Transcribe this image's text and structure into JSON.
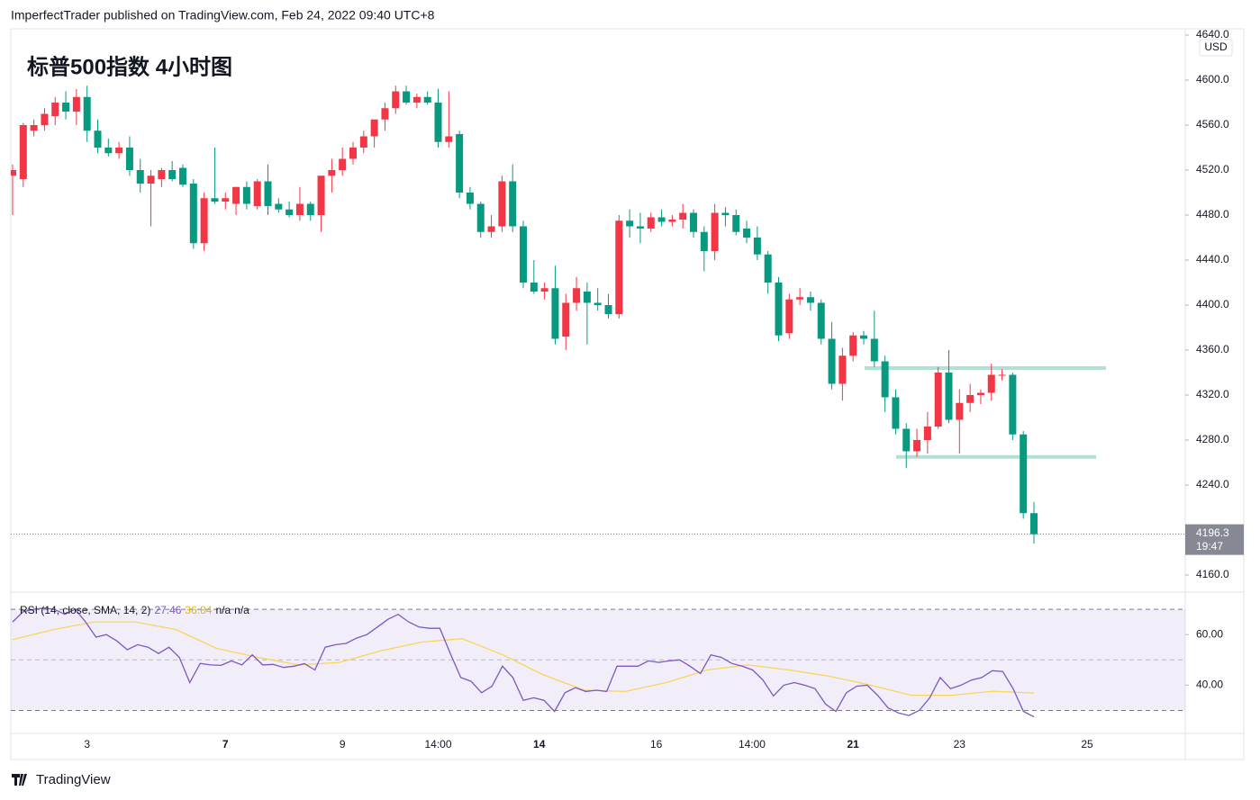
{
  "header": "ImperfectTrader published on TradingView.com, Feb 24, 2022 09:40 UTC+8",
  "footer": "TradingView",
  "chart_data": {
    "type": "candlestick",
    "title": "标普500指数 4小时图",
    "currency": "USD",
    "up_color": "#f23645",
    "down_color": "#089981",
    "ylim": [
      4145.6,
      4645.6
    ],
    "yticks": [
      {
        "value": 4160,
        "label": "4160.0"
      },
      {
        "value": 4200,
        "label": "4200.0"
      },
      {
        "value": 4240,
        "label": "4240.0"
      },
      {
        "value": 4280,
        "label": "4280.0"
      },
      {
        "value": 4320,
        "label": "4320.0"
      },
      {
        "value": 4360,
        "label": "4360.0"
      },
      {
        "value": 4400,
        "label": "4400.0"
      },
      {
        "value": 4440,
        "label": "4440.0"
      },
      {
        "value": 4480,
        "label": "4480.0"
      },
      {
        "value": 4520,
        "label": "4520.0"
      },
      {
        "value": 4560,
        "label": "4560.0"
      },
      {
        "value": 4600,
        "label": "4600.0"
      },
      {
        "value": 4640,
        "label": "4640.0"
      }
    ],
    "xticks": [
      {
        "value": 7,
        "label": "3"
      },
      {
        "value": 20,
        "label": "7",
        "bold": true
      },
      {
        "value": 31,
        "label": "9"
      },
      {
        "value": 40,
        "label": "14:00"
      },
      {
        "value": 49.5,
        "label": "14",
        "bold": true
      },
      {
        "value": 60.5,
        "label": "16"
      },
      {
        "value": 69.5,
        "label": "14:00"
      },
      {
        "value": 79,
        "label": "21",
        "bold": true
      },
      {
        "value": 89,
        "label": "23"
      },
      {
        "value": 101,
        "label": "25"
      }
    ],
    "countdown": "19:47",
    "levels": [
      {
        "price": 4344,
        "color": "#b2e0d4"
      },
      {
        "price": 4265,
        "color": "#b2e0d4"
      }
    ],
    "candles": [
      {
        "open": 4515,
        "high": 4525,
        "low": 4480,
        "close": 4520
      },
      {
        "open": 4512,
        "high": 4562,
        "low": 4505,
        "close": 4560
      },
      {
        "open": 4555,
        "high": 4565,
        "low": 4550,
        "close": 4560
      },
      {
        "open": 4560,
        "high": 4575,
        "low": 4555,
        "close": 4570
      },
      {
        "open": 4568,
        "high": 4585,
        "low": 4560,
        "close": 4580
      },
      {
        "open": 4580,
        "high": 4590,
        "low": 4565,
        "close": 4572
      },
      {
        "open": 4572,
        "high": 4592,
        "low": 4560,
        "close": 4585
      },
      {
        "open": 4585,
        "high": 4595,
        "low": 4545,
        "close": 4555
      },
      {
        "open": 4555,
        "high": 4565,
        "low": 4535,
        "close": 4540
      },
      {
        "open": 4540,
        "high": 4548,
        "low": 4532,
        "close": 4535
      },
      {
        "open": 4535,
        "high": 4545,
        "low": 4530,
        "close": 4540
      },
      {
        "open": 4540,
        "high": 4550,
        "low": 4515,
        "close": 4520
      },
      {
        "open": 4520,
        "high": 4530,
        "low": 4500,
        "close": 4508
      },
      {
        "open": 4508,
        "high": 4520,
        "low": 4470,
        "close": 4515
      },
      {
        "open": 4512,
        "high": 4522,
        "low": 4505,
        "close": 4520
      },
      {
        "open": 4520,
        "high": 4528,
        "low": 4510,
        "close": 4512
      },
      {
        "open": 4522,
        "high": 4525,
        "low": 4505,
        "close": 4507
      },
      {
        "open": 4508,
        "high": 4512,
        "low": 4450,
        "close": 4455
      },
      {
        "open": 4455,
        "high": 4500,
        "low": 4448,
        "close": 4495
      },
      {
        "open": 4495,
        "high": 4540,
        "low": 4490,
        "close": 4492
      },
      {
        "open": 4492,
        "high": 4500,
        "low": 4485,
        "close": 4495
      },
      {
        "open": 4490,
        "high": 4505,
        "low": 4480,
        "close": 4505
      },
      {
        "open": 4505,
        "high": 4510,
        "low": 4485,
        "close": 4490
      },
      {
        "open": 4488,
        "high": 4512,
        "low": 4485,
        "close": 4510
      },
      {
        "open": 4510,
        "high": 4525,
        "low": 4480,
        "close": 4488
      },
      {
        "open": 4490,
        "high": 4495,
        "low": 4482,
        "close": 4485
      },
      {
        "open": 4485,
        "high": 4492,
        "low": 4478,
        "close": 4480
      },
      {
        "open": 4480,
        "high": 4505,
        "low": 4475,
        "close": 4490
      },
      {
        "open": 4490,
        "high": 4492,
        "low": 4475,
        "close": 4480
      },
      {
        "open": 4480,
        "high": 4510,
        "low": 4465,
        "close": 4515
      },
      {
        "open": 4515,
        "high": 4530,
        "low": 4500,
        "close": 4520
      },
      {
        "open": 4520,
        "high": 4540,
        "low": 4515,
        "close": 4530
      },
      {
        "open": 4530,
        "high": 4545,
        "low": 4525,
        "close": 4540
      },
      {
        "open": 4540,
        "high": 4555,
        "low": 4535,
        "close": 4550
      },
      {
        "open": 4550,
        "high": 4560,
        "low": 4540,
        "close": 4565
      },
      {
        "open": 4565,
        "high": 4580,
        "low": 4555,
        "close": 4575
      },
      {
        "open": 4575,
        "high": 4595,
        "low": 4570,
        "close": 4590
      },
      {
        "open": 4590,
        "high": 4595,
        "low": 4578,
        "close": 4580
      },
      {
        "open": 4580,
        "high": 4588,
        "low": 4575,
        "close": 4585
      },
      {
        "open": 4585,
        "high": 4590,
        "low": 4578,
        "close": 4580
      },
      {
        "open": 4580,
        "high": 4592,
        "low": 4540,
        "close": 4545
      },
      {
        "open": 4545,
        "high": 4590,
        "low": 4540,
        "close": 4550
      },
      {
        "open": 4552,
        "high": 4555,
        "low": 4495,
        "close": 4500
      },
      {
        "open": 4500,
        "high": 4505,
        "low": 4485,
        "close": 4490
      },
      {
        "open": 4490,
        "high": 4492,
        "low": 4460,
        "close": 4465
      },
      {
        "open": 4465,
        "high": 4480,
        "low": 4460,
        "close": 4470
      },
      {
        "open": 4470,
        "high": 4515,
        "low": 4465,
        "close": 4510
      },
      {
        "open": 4510,
        "high": 4525,
        "low": 4465,
        "close": 4470
      },
      {
        "open": 4470,
        "high": 4475,
        "low": 4415,
        "close": 4420
      },
      {
        "open": 4420,
        "high": 4440,
        "low": 4410,
        "close": 4412
      },
      {
        "open": 4412,
        "high": 4420,
        "low": 4405,
        "close": 4415
      },
      {
        "open": 4415,
        "high": 4435,
        "low": 4365,
        "close": 4370
      },
      {
        "open": 4372,
        "high": 4410,
        "low": 4360,
        "close": 4402
      },
      {
        "open": 4402,
        "high": 4425,
        "low": 4395,
        "close": 4415
      },
      {
        "open": 4412,
        "high": 4420,
        "low": 4365,
        "close": 4402
      },
      {
        "open": 4402,
        "high": 4415,
        "low": 4395,
        "close": 4400
      },
      {
        "open": 4400,
        "high": 4410,
        "low": 4388,
        "close": 4392
      },
      {
        "open": 4392,
        "high": 4480,
        "low": 4388,
        "close": 4475
      },
      {
        "open": 4475,
        "high": 4485,
        "low": 4460,
        "close": 4470
      },
      {
        "open": 4470,
        "high": 4482,
        "low": 4455,
        "close": 4468
      },
      {
        "open": 4468,
        "high": 4482,
        "low": 4465,
        "close": 4478
      },
      {
        "open": 4478,
        "high": 4485,
        "low": 4470,
        "close": 4474
      },
      {
        "open": 4474,
        "high": 4480,
        "low": 4470,
        "close": 4476
      },
      {
        "open": 4476,
        "high": 4490,
        "low": 4468,
        "close": 4482
      },
      {
        "open": 4482,
        "high": 4485,
        "low": 4460,
        "close": 4465
      },
      {
        "open": 4465,
        "high": 4470,
        "low": 4430,
        "close": 4448
      },
      {
        "open": 4448,
        "high": 4490,
        "low": 4440,
        "close": 4482
      },
      {
        "open": 4482,
        "high": 4487,
        "low": 4470,
        "close": 4480
      },
      {
        "open": 4480,
        "high": 4485,
        "low": 4462,
        "close": 4465
      },
      {
        "open": 4468,
        "high": 4475,
        "low": 4455,
        "close": 4460
      },
      {
        "open": 4460,
        "high": 4470,
        "low": 4440,
        "close": 4445
      },
      {
        "open": 4445,
        "high": 4448,
        "low": 4410,
        "close": 4420
      },
      {
        "open": 4420,
        "high": 4425,
        "low": 4368,
        "close": 4373
      },
      {
        "open": 4375,
        "high": 4410,
        "low": 4370,
        "close": 4405
      },
      {
        "open": 4405,
        "high": 4415,
        "low": 4400,
        "close": 4407
      },
      {
        "open": 4407,
        "high": 4412,
        "low": 4395,
        "close": 4402
      },
      {
        "open": 4402,
        "high": 4405,
        "low": 4365,
        "close": 4370
      },
      {
        "open": 4370,
        "high": 4385,
        "low": 4325,
        "close": 4330
      },
      {
        "open": 4330,
        "high": 4362,
        "low": 4315,
        "close": 4355
      },
      {
        "open": 4355,
        "high": 4376,
        "low": 4350,
        "close": 4373
      },
      {
        "open": 4373,
        "high": 4377,
        "low": 4365,
        "close": 4370
      },
      {
        "open": 4370,
        "high": 4395,
        "low": 4345,
        "close": 4350
      },
      {
        "open": 4350,
        "high": 4355,
        "low": 4305,
        "close": 4318
      },
      {
        "open": 4318,
        "high": 4325,
        "low": 4285,
        "close": 4290
      },
      {
        "open": 4290,
        "high": 4295,
        "low": 4255,
        "close": 4270
      },
      {
        "open": 4270,
        "high": 4290,
        "low": 4265,
        "close": 4280
      },
      {
        "open": 4280,
        "high": 4305,
        "low": 4268,
        "close": 4292
      },
      {
        "open": 4292,
        "high": 4345,
        "low": 4290,
        "close": 4340
      },
      {
        "open": 4340,
        "high": 4360,
        "low": 4295,
        "close": 4298
      },
      {
        "open": 4298,
        "high": 4325,
        "low": 4268,
        "close": 4313
      },
      {
        "open": 4313,
        "high": 4330,
        "low": 4305,
        "close": 4320
      },
      {
        "open": 4320,
        "high": 4325,
        "low": 4312,
        "close": 4322
      },
      {
        "open": 4322,
        "high": 4348,
        "low": 4315,
        "close": 4338
      },
      {
        "open": 4338,
        "high": 4343,
        "low": 4333,
        "close": 4338
      },
      {
        "open": 4338,
        "high": 4340,
        "low": 4280,
        "close": 4285
      },
      {
        "open": 4285,
        "high": 4288,
        "low": 4210,
        "close": 4215
      },
      {
        "open": 4215,
        "high": 4225,
        "low": 4188,
        "close": 4196.3
      }
    ],
    "rsi": {
      "label": "RSI (14, close, SMA, 14, 2)",
      "na_labels": [
        "n/a",
        "n/a"
      ],
      "ylim": [
        20.9,
        76.8
      ],
      "yticks": [
        {
          "value": 40,
          "label": "40.00"
        },
        {
          "value": 60,
          "label": "60.00"
        }
      ],
      "band": [
        30,
        70
      ],
      "midline": 50,
      "band_color": "#7e57c2",
      "series": [
        {
          "name": "RSI",
          "color": "#7e57c2",
          "values": [
            65,
            69,
            70,
            70.5,
            70,
            68,
            70,
            65,
            59,
            60,
            57.5,
            54,
            56,
            55,
            52.5,
            55,
            51,
            41,
            48.6,
            48,
            47.8,
            49.6,
            48,
            52,
            48,
            48.2,
            47,
            47.5,
            48.5,
            46,
            55,
            56,
            56.5,
            58.6,
            60,
            63,
            66,
            68,
            65,
            63,
            62.5,
            62.5,
            52.5,
            43,
            41.5,
            37,
            39.6,
            47.5,
            43,
            34,
            35,
            34,
            29.6,
            37,
            39,
            37.5,
            38,
            37.5,
            47.5,
            47.5,
            47.5,
            49.6,
            49,
            49.6,
            50,
            47.5,
            44.6,
            52,
            51,
            48.6,
            47.5,
            46,
            42,
            35.7,
            40,
            41,
            40,
            38.6,
            32.5,
            29.6,
            37,
            39.6,
            40,
            36,
            31,
            29,
            28,
            30,
            35,
            43,
            38.6,
            40,
            42,
            43,
            45.7,
            45.4,
            38.6,
            29.6,
            27.46
          ]
        },
        {
          "name": "SMA",
          "color": "#f7d55a",
          "values": [
            58,
            62,
            65,
            65,
            62,
            54.5,
            51,
            48,
            49,
            53.5,
            57,
            58.4,
            52,
            44,
            38,
            37.5,
            41,
            46,
            48,
            46,
            43.5,
            40,
            36,
            36,
            37.6,
            36.84
          ]
        }
      ]
    }
  }
}
